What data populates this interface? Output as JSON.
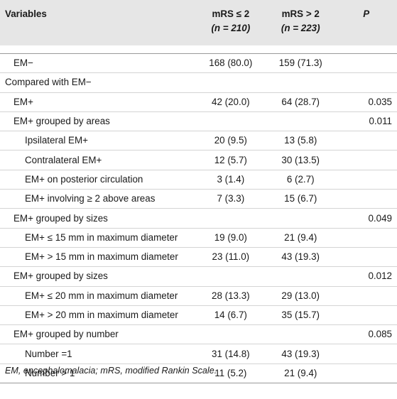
{
  "header": {
    "variables": "Variables",
    "group_a_label": "mRS ≤ 2",
    "group_a_n": "(n = 210)",
    "group_b_label": "mRS > 2",
    "group_b_n": "(n = 223)",
    "p": "P"
  },
  "rows": [
    {
      "label": "EM−",
      "level": 1,
      "a": "168 (80.0)",
      "b": "159 (71.3)",
      "p": ""
    },
    {
      "label": "Compared with EM−",
      "level": 0,
      "a": "",
      "b": "",
      "p": ""
    },
    {
      "label": "EM+",
      "level": 1,
      "a": "42 (20.0)",
      "b": "64 (28.7)",
      "p": "0.035"
    },
    {
      "label": "EM+ grouped by areas",
      "level": 1,
      "a": "",
      "b": "",
      "p": "0.011"
    },
    {
      "label": "Ipsilateral EM+",
      "level": 2,
      "a": "20 (9.5)",
      "b": "13 (5.8)",
      "p": ""
    },
    {
      "label": "Contralateral EM+",
      "level": 2,
      "a": "12 (5.7)",
      "b": "30 (13.5)",
      "p": ""
    },
    {
      "label": "EM+ on posterior circulation",
      "level": 2,
      "a": "3 (1.4)",
      "b": "6 (2.7)",
      "p": ""
    },
    {
      "label": "EM+ involving ≥ 2 above areas",
      "level": 2,
      "a": "7 (3.3)",
      "b": "15 (6.7)",
      "p": ""
    },
    {
      "label": "EM+ grouped by sizes",
      "level": 1,
      "a": "",
      "b": "",
      "p": "0.049"
    },
    {
      "label": "EM+ ≤ 15 mm in maximum diameter",
      "level": 2,
      "a": "19 (9.0)",
      "b": "21 (9.4)",
      "p": ""
    },
    {
      "label": "EM+ > 15 mm in maximum diameter",
      "level": 2,
      "a": "23 (11.0)",
      "b": "43 (19.3)",
      "p": ""
    },
    {
      "label": "EM+ grouped by sizes",
      "level": 1,
      "a": "",
      "b": "",
      "p": "0.012"
    },
    {
      "label": "EM+ ≤ 20 mm in maximum diameter",
      "level": 2,
      "a": "28 (13.3)",
      "b": "29 (13.0)",
      "p": ""
    },
    {
      "label": "EM+ > 20 mm in maximum diameter",
      "level": 2,
      "a": "14 (6.7)",
      "b": "35 (15.7)",
      "p": ""
    },
    {
      "label": "EM+ grouped by number",
      "level": 1,
      "a": "",
      "b": "",
      "p": "0.085"
    },
    {
      "label": "Number =1",
      "level": 2,
      "a": "31 (14.8)",
      "b": "43 (19.3)",
      "p": ""
    },
    {
      "label": "Number > 1",
      "level": 2,
      "a": "11 (5.2)",
      "b": "21 (9.4)",
      "p": ""
    }
  ],
  "footnote": "EM, encephalomalacia; mRS, modified Rankin Scale."
}
